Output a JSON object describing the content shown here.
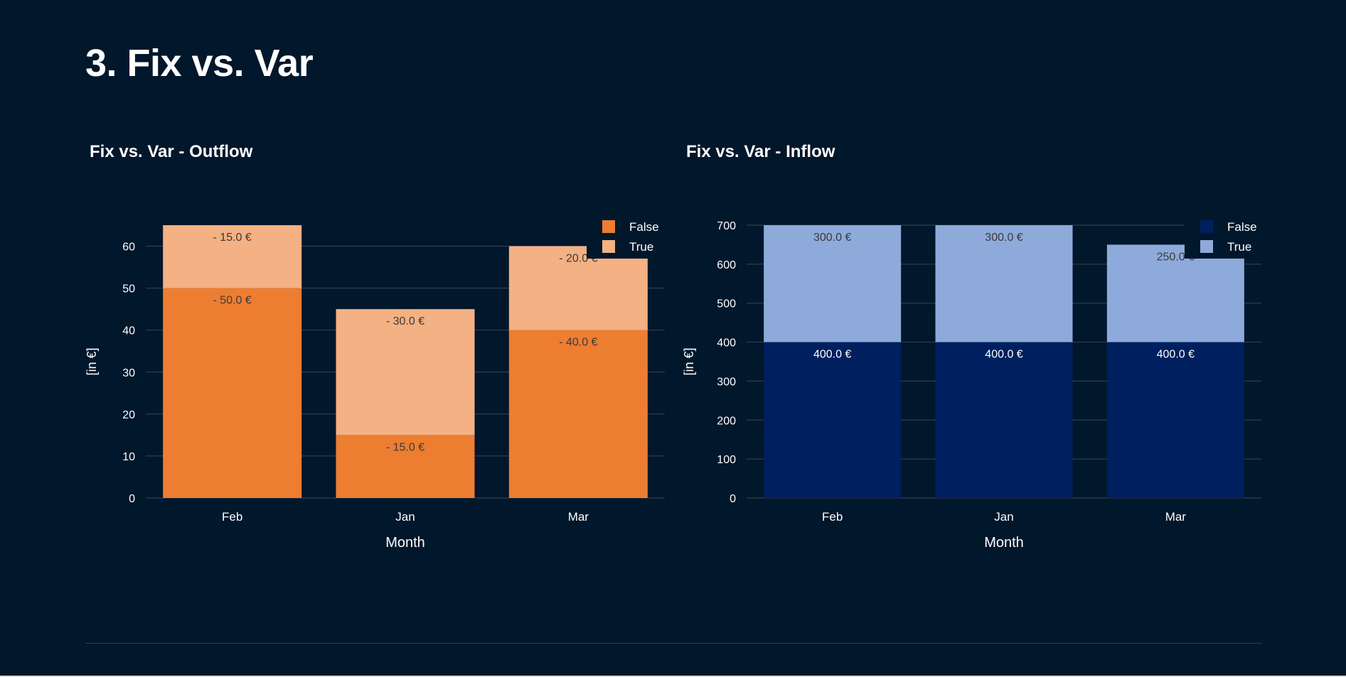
{
  "page": {
    "title": "3. Fix vs. Var"
  },
  "colors": {
    "background": "#01172b",
    "outflow_false": "#ed7d31",
    "outflow_true": "#f4b183",
    "inflow_false": "#001f5f",
    "inflow_true": "#8eaadb",
    "grid": "#3a4556",
    "text": "#ffffff",
    "label_dark": "#3a3a3a"
  },
  "chart_data": [
    {
      "type": "bar",
      "stacked": true,
      "title": "Fix vs. Var - Outflow",
      "xlabel": "Month",
      "ylabel": "[in €]",
      "categories": [
        "Feb",
        "Jan",
        "Mar"
      ],
      "ylim": [
        0,
        65
      ],
      "yticks": [
        0,
        10,
        20,
        30,
        40,
        50,
        60
      ],
      "grid": true,
      "legend_position": "top-right",
      "series": [
        {
          "name": "False",
          "values": [
            50,
            15,
            40
          ],
          "labels": [
            "- 50.0 €",
            "- 15.0 €",
            "- 40.0 €"
          ]
        },
        {
          "name": "True",
          "values": [
            15,
            30,
            20
          ],
          "labels": [
            "- 15.0 €",
            "- 30.0 €",
            "- 20.0 €"
          ]
        }
      ]
    },
    {
      "type": "bar",
      "stacked": true,
      "title": "Fix vs. Var - Inflow",
      "xlabel": "Month",
      "ylabel": "[in €]",
      "categories": [
        "Feb",
        "Jan",
        "Mar"
      ],
      "ylim": [
        0,
        700
      ],
      "yticks": [
        0,
        100,
        200,
        300,
        400,
        500,
        600,
        700
      ],
      "grid": true,
      "legend_position": "top-right",
      "series": [
        {
          "name": "False",
          "values": [
            400,
            400,
            400
          ],
          "labels": [
            "400.0 €",
            "400.0 €",
            "400.0 €"
          ]
        },
        {
          "name": "True",
          "values": [
            300,
            300,
            250
          ],
          "labels": [
            "300.0 €",
            "300.0 €",
            "250.0 €"
          ]
        }
      ]
    }
  ]
}
